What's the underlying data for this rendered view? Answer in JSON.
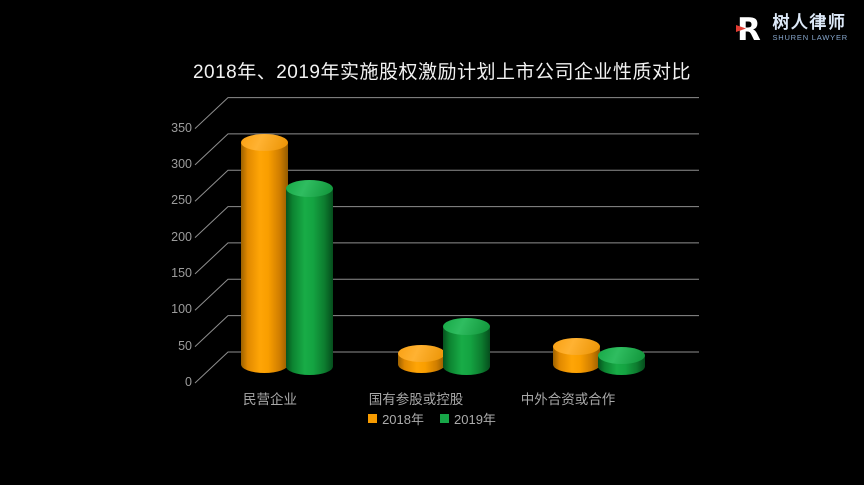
{
  "page": {
    "background": "#000000"
  },
  "logo": {
    "name_cn": "树人律师",
    "name_en": "SHUREN LAWYER",
    "mark_letter": "R",
    "mark_color": "#ffffff",
    "accent_red": "#e23d33",
    "cn_color": "#dde9f8",
    "en_color": "#87a7cd"
  },
  "chart_data": {
    "type": "bar",
    "style": "3d-cylinder",
    "title": "2018年、2019年实施股权激励计划上市公司企业性质对比",
    "categories": [
      "民营企业",
      "国有参股或控股",
      "中外合资或合作"
    ],
    "series": [
      {
        "name": "2018年",
        "color": "#F79B00",
        "values": [
          305,
          15,
          25
        ]
      },
      {
        "name": "2019年",
        "color": "#17A648",
        "values": [
          245,
          55,
          15
        ]
      }
    ],
    "xlabel": "",
    "ylabel": "",
    "ylim": [
      0,
      350
    ],
    "yticks": [
      0,
      50,
      100,
      150,
      200,
      250,
      300,
      350
    ],
    "grid": true,
    "grid_color": "#8e8e8e",
    "legend_position": "bottom",
    "text_color": "#a8a8a8",
    "background": "#000000"
  }
}
